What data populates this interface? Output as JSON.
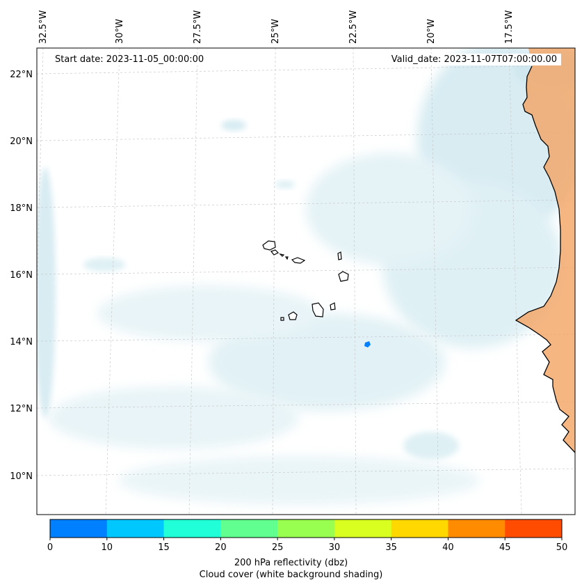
{
  "map": {
    "start_date_text": "Start date: 2023-11-05_00:00:00",
    "valid_date_text": "Valid_date: 2023-11-07T07:00:00.00",
    "longitude_labels": [
      "32.5°W",
      "30°W",
      "27.5°W",
      "25°W",
      "22.5°W",
      "20°W",
      "17.5°W"
    ],
    "latitude_labels": [
      "22°N",
      "20°N",
      "18°N",
      "16°N",
      "14°N",
      "12°N",
      "10°N"
    ],
    "land_color": "#f4a463",
    "cloud_color": "#b8dde8",
    "grid_color": "#c8c8c8"
  },
  "colorbar": {
    "ticks": [
      "0",
      "10",
      "15",
      "20",
      "25",
      "30",
      "35",
      "40",
      "45",
      "50"
    ],
    "colors": [
      "#0080ff",
      "#00c8ff",
      "#20ffd8",
      "#60ff90",
      "#98ff50",
      "#d8ff20",
      "#ffd800",
      "#ff8c00",
      "#ff4c00"
    ],
    "label_1": "200 hPa reflectivity (dbz)",
    "label_2": "Cloud cover (white background shading)"
  }
}
